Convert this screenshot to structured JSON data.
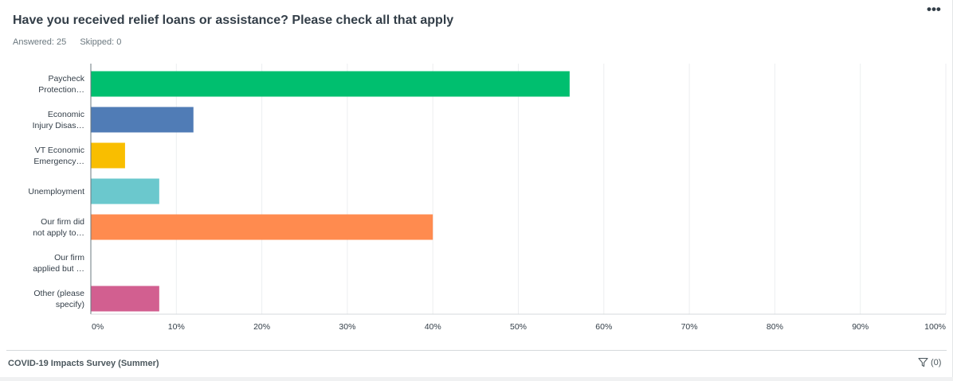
{
  "question": {
    "title": "Have you received relief loans or assistance? Please check all that apply",
    "answered": "Answered: 25",
    "skipped": "Skipped: 0",
    "menu_glyph": "•••"
  },
  "footer": {
    "survey_title": "COVID-19 Impacts Survey (Summer)",
    "filter_label": "(0)",
    "filter_icon": "filter-icon"
  },
  "chart_data": {
    "type": "bar",
    "orientation": "horizontal",
    "categories": [
      [
        "Paycheck",
        "Protection…"
      ],
      [
        "Economic",
        "Injury Disas…"
      ],
      [
        "VT Economic",
        "Emergency…"
      ],
      [
        "Unemployment"
      ],
      [
        "Our firm did",
        "not apply to…"
      ],
      [
        "Our firm",
        "applied but …"
      ],
      [
        "Other (please",
        "specify)"
      ]
    ],
    "values": [
      56,
      12,
      4,
      8,
      40,
      0,
      8
    ],
    "colors": [
      "#00bf6f",
      "#507cb6",
      "#f9be00",
      "#6bc8cd",
      "#ff8b4f",
      "#7d5e90",
      "#d25f90"
    ],
    "xlim": [
      0,
      100
    ],
    "xticks": [
      0,
      10,
      20,
      30,
      40,
      50,
      60,
      70,
      80,
      90,
      100
    ],
    "xtick_suffix": "%",
    "grid": true
  }
}
